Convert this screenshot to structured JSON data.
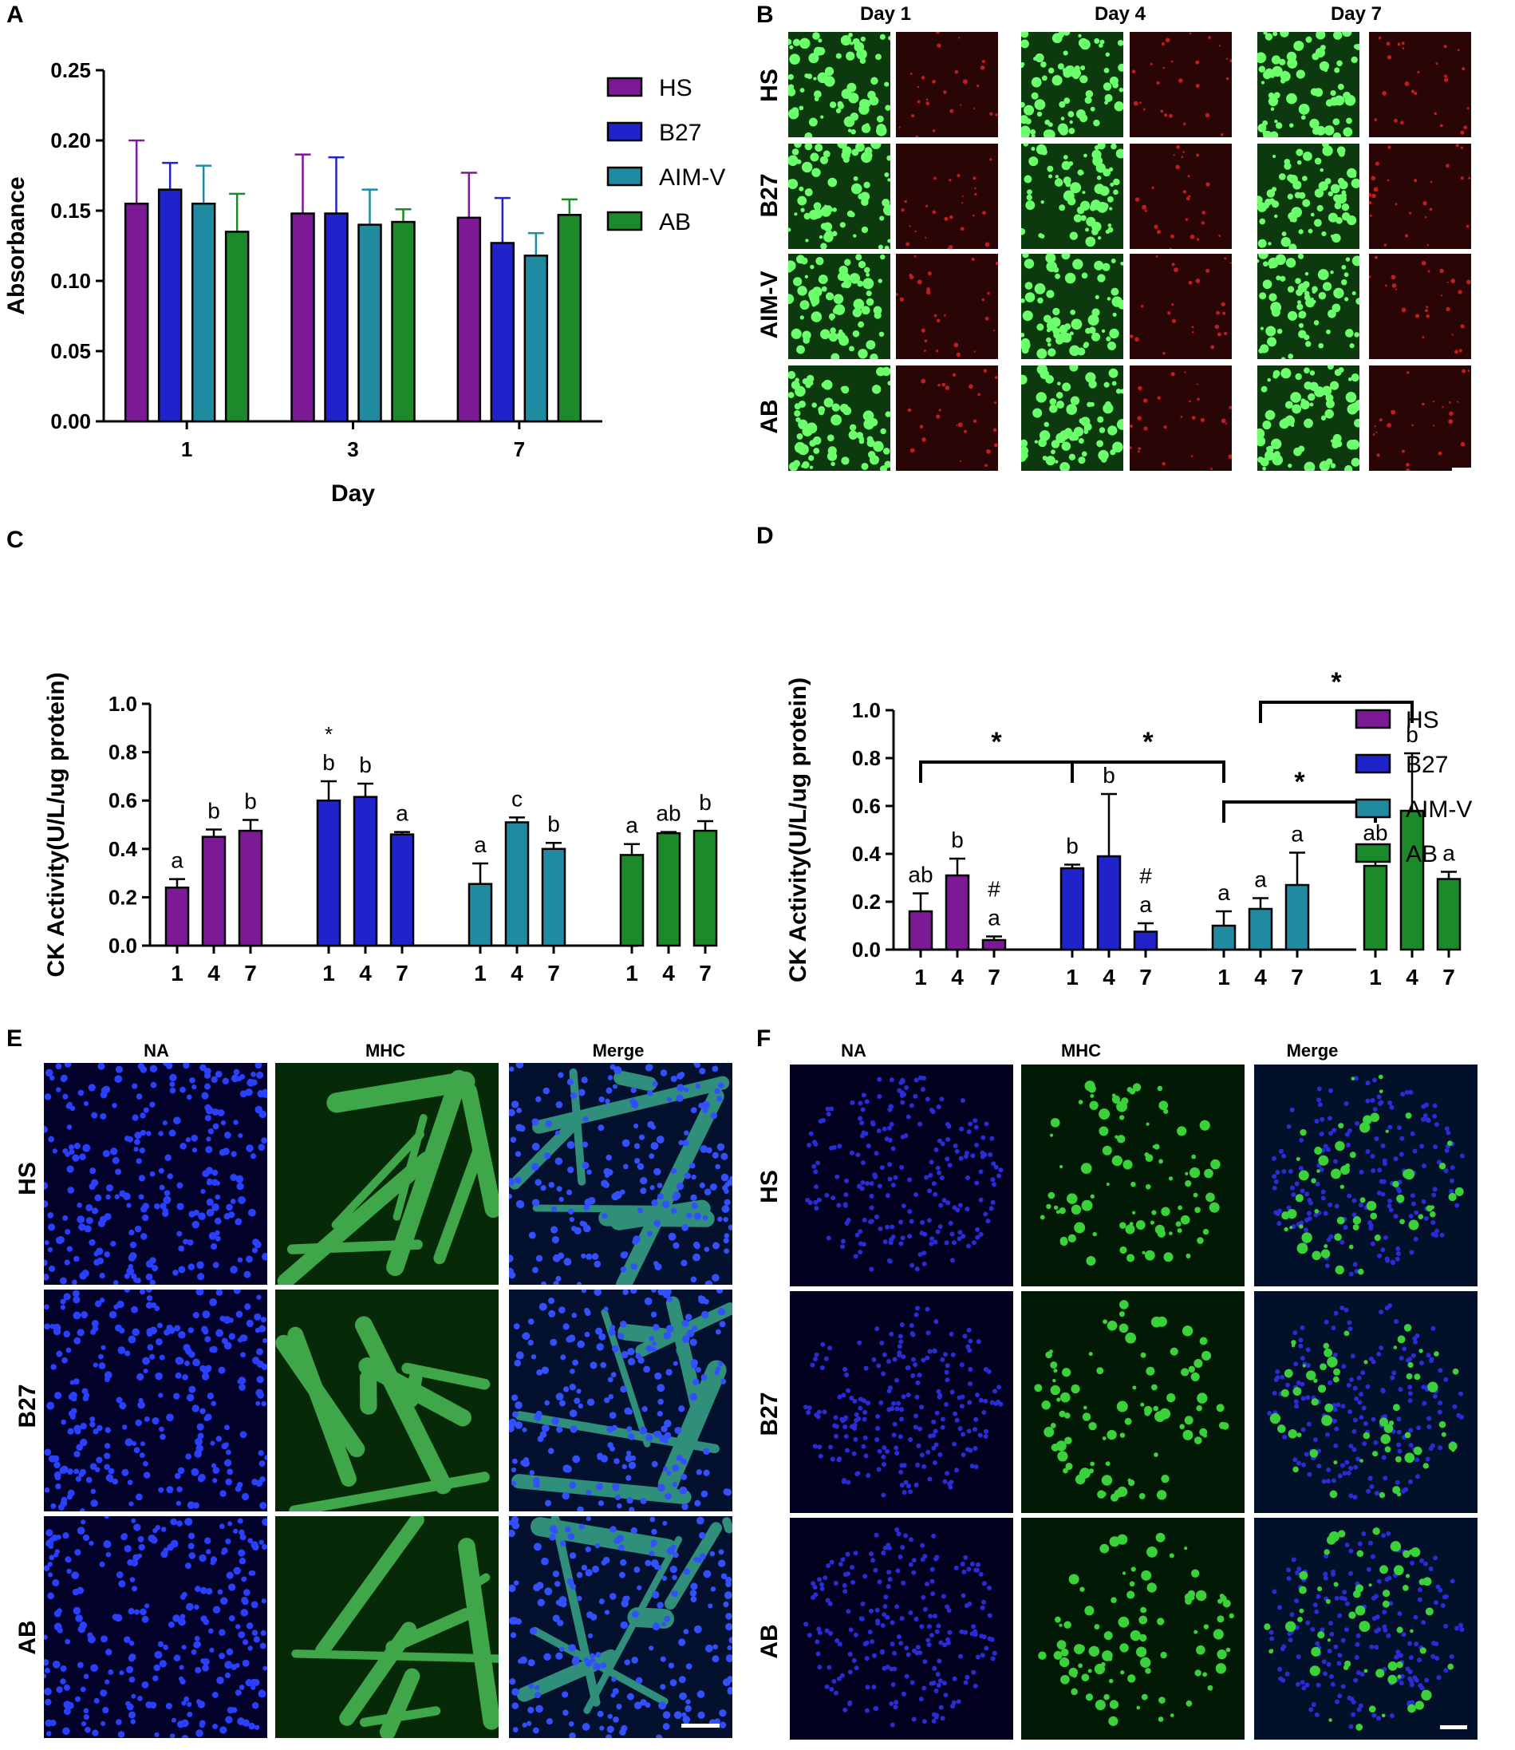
{
  "panels": {
    "a": "A",
    "b": "B",
    "c": "C",
    "d": "D",
    "e": "E",
    "f": "F"
  },
  "panel_b": {
    "columns": [
      "Day 1",
      "Day 4",
      "Day 7"
    ],
    "rows": [
      "HS",
      "B27",
      "AIM-V",
      "AB"
    ]
  },
  "panel_e": {
    "columns": [
      "NA",
      "MHC",
      "Merge"
    ],
    "rows": [
      "HS",
      "B27",
      "AB"
    ]
  },
  "panel_f": {
    "columns": [
      "NA",
      "MHC",
      "Merge"
    ],
    "rows": [
      "HS",
      "B27",
      "AB"
    ]
  },
  "colors": {
    "HS": "#7b1a94",
    "B27": "#1f23c9",
    "AIM-V": "#1f8aa0",
    "AB": "#1c8a2a"
  },
  "chart_data": [
    {
      "id": "A",
      "type": "bar",
      "xlabel": "Day",
      "ylabel": "Absorbance",
      "ylim": [
        0,
        0.25
      ],
      "yticks": [
        "0.00",
        "0.05",
        "0.10",
        "0.15",
        "0.20",
        "0.25"
      ],
      "categories": [
        "1",
        "3",
        "7"
      ],
      "legend_position": "top-right",
      "series": [
        {
          "name": "HS",
          "values": [
            0.155,
            0.148,
            0.145
          ],
          "errors": [
            0.045,
            0.042,
            0.032
          ]
        },
        {
          "name": "B27",
          "values": [
            0.165,
            0.148,
            0.127
          ],
          "errors": [
            0.019,
            0.04,
            0.032
          ]
        },
        {
          "name": "AIM-V",
          "values": [
            0.155,
            0.14,
            0.118
          ],
          "errors": [
            0.027,
            0.025,
            0.016
          ]
        },
        {
          "name": "AB",
          "values": [
            0.135,
            0.142,
            0.147
          ],
          "errors": [
            0.027,
            0.009,
            0.011
          ]
        }
      ]
    },
    {
      "id": "C",
      "type": "bar",
      "ylabel": "CK Activity(U/L/ug protein)",
      "ylim": [
        0,
        1.0
      ],
      "yticks": [
        "0.0",
        "0.2",
        "0.4",
        "0.6",
        "0.8",
        "1.0"
      ],
      "groups": [
        {
          "name": "HS",
          "days": [
            "1",
            "4",
            "7"
          ],
          "values": [
            0.24,
            0.45,
            0.475
          ],
          "errors": [
            0.035,
            0.03,
            0.045
          ],
          "letters": [
            "a",
            "b",
            "b"
          ],
          "marks": [
            "",
            "",
            ""
          ]
        },
        {
          "name": "B27",
          "days": [
            "1",
            "4",
            "7"
          ],
          "values": [
            0.6,
            0.615,
            0.46
          ],
          "errors": [
            0.08,
            0.055,
            0.01
          ],
          "letters": [
            "b",
            "b",
            "a"
          ],
          "marks": [
            "*",
            "",
            ""
          ]
        },
        {
          "name": "AIM-V",
          "days": [
            "1",
            "4",
            "7"
          ],
          "values": [
            0.255,
            0.51,
            0.4
          ],
          "errors": [
            0.085,
            0.02,
            0.025
          ],
          "letters": [
            "a",
            "c",
            "b"
          ],
          "marks": [
            "",
            "",
            ""
          ]
        },
        {
          "name": "AB",
          "days": [
            "1",
            "4",
            "7"
          ],
          "values": [
            0.375,
            0.465,
            0.475
          ],
          "errors": [
            0.045,
            0.005,
            0.04
          ],
          "letters": [
            "a",
            "ab",
            "b"
          ],
          "marks": [
            "",
            "",
            ""
          ]
        }
      ]
    },
    {
      "id": "D",
      "type": "bar",
      "ylabel": "CK Activity(U/L/ug protein)",
      "ylim": [
        0,
        1.0
      ],
      "yticks": [
        "0.0",
        "0.2",
        "0.4",
        "0.6",
        "0.8",
        "1.0"
      ],
      "legend_position": "top-right",
      "groups": [
        {
          "name": "HS",
          "days": [
            "1",
            "4",
            "7"
          ],
          "values": [
            0.16,
            0.31,
            0.04
          ],
          "errors": [
            0.075,
            0.07,
            0.015
          ],
          "letters": [
            "ab",
            "b",
            "a"
          ],
          "marks": [
            "",
            "",
            "#"
          ]
        },
        {
          "name": "B27",
          "days": [
            "1",
            "4",
            "7"
          ],
          "values": [
            0.34,
            0.39,
            0.075
          ],
          "errors": [
            0.015,
            0.26,
            0.035
          ],
          "letters": [
            "b",
            "b",
            "a"
          ],
          "marks": [
            "",
            "",
            "#"
          ]
        },
        {
          "name": "AIM-V",
          "days": [
            "1",
            "4",
            "7"
          ],
          "values": [
            0.1,
            0.17,
            0.27
          ],
          "errors": [
            0.06,
            0.045,
            0.135
          ],
          "letters": [
            "a",
            "a",
            "a"
          ],
          "marks": [
            "",
            "",
            ""
          ]
        },
        {
          "name": "AB",
          "days": [
            "1",
            "4",
            "7"
          ],
          "values": [
            0.35,
            0.58,
            0.295
          ],
          "errors": [
            0.06,
            0.24,
            0.03
          ],
          "letters": [
            "ab",
            "b",
            "a"
          ],
          "marks": [
            "",
            "",
            ""
          ]
        }
      ],
      "significance": [
        {
          "from": "HS-1",
          "to": "B27-1",
          "label": "*"
        },
        {
          "from": "B27-1",
          "to": "AIM-V-1",
          "label": "*"
        },
        {
          "from": "AIM-V-1",
          "to": "AB-1",
          "label": "*"
        },
        {
          "from": "AIM-V-4",
          "to": "AB-4",
          "label": "*"
        }
      ]
    }
  ]
}
